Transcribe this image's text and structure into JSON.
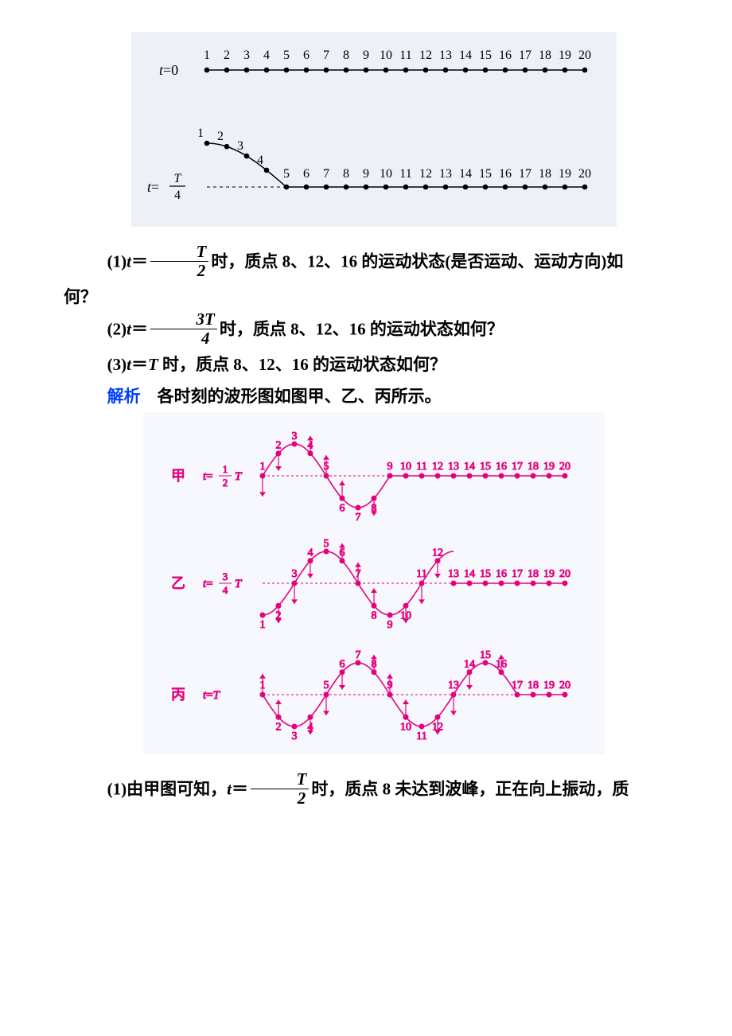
{
  "top_diagram": {
    "background": "#eef0f7",
    "stroke": "#000000",
    "fill_point": "#000000",
    "font_size": 16,
    "italic_font_size": 18,
    "labels_top": [
      "1",
      "2",
      "3",
      "4",
      "5",
      "6",
      "7",
      "8",
      "9",
      "10",
      "11",
      "12",
      "13",
      "14",
      "15",
      "16",
      "17",
      "18",
      "19",
      "20"
    ],
    "row0_label_prefix": "t",
    "row0_label_eq": "=0",
    "rowT4_prefix": "t",
    "rowT4_eq": "=",
    "rowT4_frac_num": "T",
    "rowT4_frac_den": "4",
    "labels_bottom_right": [
      "5",
      "6",
      "7",
      "8",
      "9",
      "10",
      "11",
      "12",
      "13",
      "14",
      "15",
      "16",
      "17",
      "18",
      "19",
      "20"
    ],
    "labels_bottom_curve": [
      "1",
      "2",
      "3",
      "4"
    ]
  },
  "q1": {
    "prefix": "(1)",
    "t": "t",
    "eq": "＝",
    "frac_num": "T",
    "frac_den": "2",
    "tail": "时，质点 8、12、16 的运动状态(是否运动、运动方向)如",
    "cont": "何？"
  },
  "q2": {
    "prefix": "(2)",
    "t": "t",
    "eq": "＝",
    "frac_num": "3T",
    "frac_den": "4",
    "tail": "时，质点 8、12、16 的运动状态如何？"
  },
  "q3": {
    "prefix": "(3)",
    "t": "t",
    "eq": "＝",
    "T": "T",
    "tail": " 时，质点 8、12、16 的运动状态如何？"
  },
  "sol_label": "解析",
  "sol_text": "　各时刻的波形图如图甲、乙、丙所示。",
  "bottom_diagram": {
    "background": "#f6f8fd",
    "color": "#e6007e",
    "font_size": 15,
    "small_font_size": 14,
    "series": {
      "jia": {
        "name": "甲",
        "t_label_prefix": "t=",
        "frac_num": "1",
        "frac_den": "2",
        "after_frac": " T",
        "curve_labels": [
          "1",
          "2",
          "3",
          "4",
          "5",
          "6",
          "7",
          "8"
        ],
        "flat_labels": [
          "9",
          "10",
          "11",
          "12",
          "13",
          "14",
          "15",
          "16",
          "17",
          "18",
          "19",
          "20"
        ],
        "amplitude": 40
      },
      "yi": {
        "name": "乙",
        "t_label_prefix": "t=",
        "frac_num": "3",
        "frac_den": "4",
        "after_frac": " T",
        "curve_labels": [
          "1",
          "2",
          "3",
          "4",
          "5",
          "6",
          "7",
          "8",
          "9",
          "10",
          "11",
          "12"
        ],
        "flat_labels": [
          "13",
          "14",
          "15",
          "16",
          "17",
          "18",
          "19",
          "20"
        ],
        "amplitude": 40
      },
      "bing": {
        "name": "丙",
        "t_label_prefix": "t=",
        "T_label": "T",
        "curve_labels": [
          "1",
          "2",
          "3",
          "4",
          "5",
          "6",
          "7",
          "8",
          "9",
          "10",
          "11",
          "12",
          "13",
          "14",
          "15",
          "16"
        ],
        "flat_labels": [
          "17",
          "18",
          "19",
          "20"
        ],
        "amplitude": 40
      }
    }
  },
  "ans1": {
    "prefix": "(1)由甲图可知，",
    "t": "t",
    "eq": "＝",
    "frac_num": "T",
    "frac_den": "2",
    "tail": "时，质点 8 未达到波峰，正在向上振动，质"
  }
}
